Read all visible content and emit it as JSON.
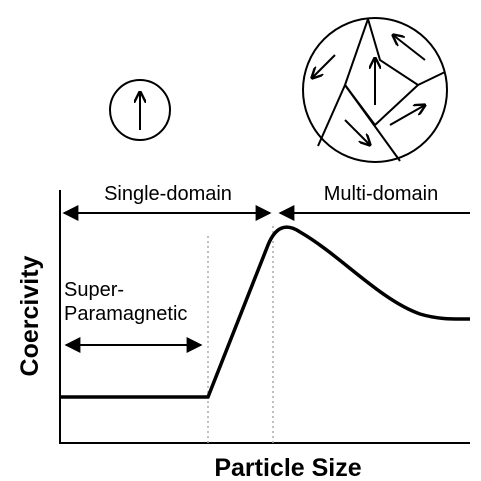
{
  "labels": {
    "single_domain": "Single-domain",
    "multi_domain": "Multi-domain",
    "superparamagnetic": [
      "Super-",
      "Paramagnetic"
    ]
  },
  "axes": {
    "y_label": "Coercivity",
    "x_label": "Particle Size"
  }
}
